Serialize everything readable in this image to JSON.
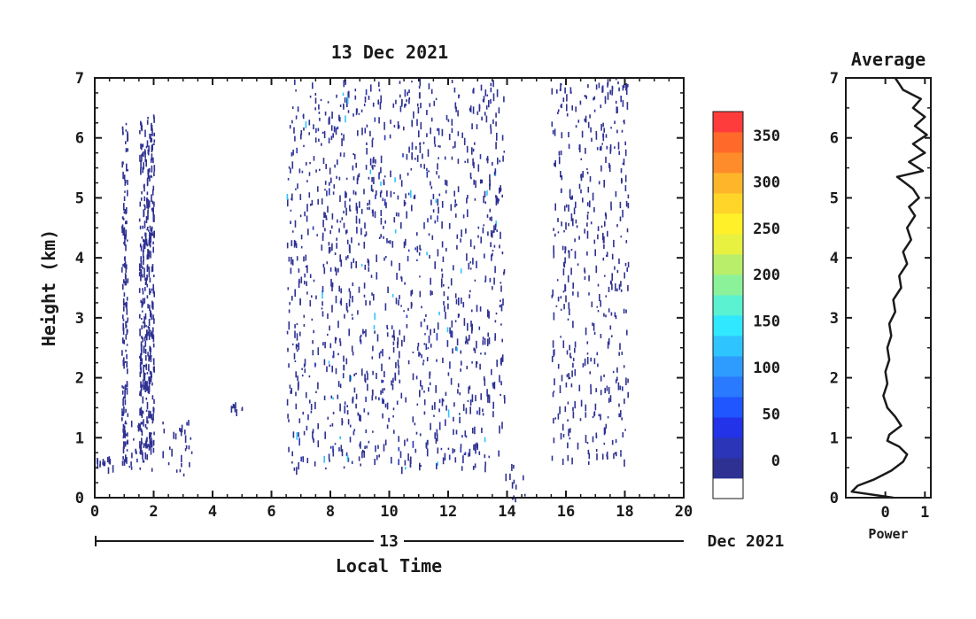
{
  "chart_data": [
    {
      "type": "heatmap",
      "title": "13 Dec 2021",
      "xlabel": "Local Time",
      "ylabel": "Height (km)",
      "xlim": [
        0,
        20
      ],
      "ylim": [
        0,
        7
      ],
      "xticks": [
        0,
        2,
        4,
        6,
        8,
        10,
        12,
        14,
        16,
        18,
        20
      ],
      "yticks": [
        0,
        1,
        2,
        3,
        4,
        5,
        6,
        7
      ],
      "date_axis": {
        "day_label": "13",
        "month_label": "Dec 2021"
      },
      "grid": false,
      "echo_regions": [
        {
          "x": [
            0.0,
            0.6
          ],
          "y": [
            0.5,
            0.7
          ],
          "level": "0-50"
        },
        {
          "x": [
            0.9,
            1.1
          ],
          "y": [
            0.6,
            6.3
          ],
          "level": "0-50"
        },
        {
          "x": [
            1.5,
            2.0
          ],
          "y": [
            0.7,
            6.4
          ],
          "level": "0-50"
        },
        {
          "x": [
            1.1,
            3.3
          ],
          "y": [
            0.4,
            1.3
          ],
          "level": "0-50"
        },
        {
          "x": [
            4.6,
            5.0
          ],
          "y": [
            1.4,
            1.6
          ],
          "level": "0-50"
        },
        {
          "x": [
            6.5,
            13.9
          ],
          "y": [
            0.5,
            7.0
          ],
          "level": "0-100"
        },
        {
          "x": [
            13.8,
            14.6
          ],
          "y": [
            0.0,
            0.6
          ],
          "level": "0-50"
        },
        {
          "x": [
            15.5,
            18.1
          ],
          "y": [
            0.6,
            7.0
          ],
          "level": "0-50"
        }
      ],
      "colorbar": {
        "ticks": [
          0,
          50,
          100,
          150,
          200,
          250,
          300,
          350
        ],
        "colors": [
          "#ffffff",
          "#2e3192",
          "#2a35b8",
          "#2233e8",
          "#1f56ff",
          "#2a7aff",
          "#2e9cff",
          "#2ec4ff",
          "#30e8ff",
          "#5af2d0",
          "#8cf29a",
          "#b8ee6a",
          "#e8f040",
          "#fff02a",
          "#ffd52a",
          "#ffb52a",
          "#ff8c2a",
          "#ff6a2a",
          "#ff3c3c"
        ]
      }
    },
    {
      "type": "line",
      "title": "Average",
      "xlabel": "Power",
      "ylabel": "",
      "xlim": [
        -1,
        1.15
      ],
      "ylim": [
        0,
        7
      ],
      "xticks": [
        0,
        1
      ],
      "yticks": [
        0,
        1,
        2,
        3,
        4,
        5,
        6,
        7
      ],
      "series": [
        {
          "points": [
            [
              0.2,
              0.0
            ],
            [
              -0.85,
              0.1
            ],
            [
              -0.7,
              0.2
            ],
            [
              -0.3,
              0.3
            ],
            [
              0.15,
              0.45
            ],
            [
              0.45,
              0.6
            ],
            [
              0.55,
              0.72
            ],
            [
              0.35,
              0.85
            ],
            [
              0.05,
              0.95
            ],
            [
              0.1,
              1.05
            ],
            [
              0.4,
              1.2
            ],
            [
              0.25,
              1.35
            ],
            [
              0.05,
              1.5
            ],
            [
              -0.05,
              1.7
            ],
            [
              0.05,
              1.9
            ],
            [
              0.0,
              2.1
            ],
            [
              0.1,
              2.3
            ],
            [
              0.05,
              2.5
            ],
            [
              0.15,
              2.7
            ],
            [
              0.1,
              2.9
            ],
            [
              0.25,
              3.1
            ],
            [
              0.2,
              3.3
            ],
            [
              0.4,
              3.5
            ],
            [
              0.35,
              3.7
            ],
            [
              0.55,
              3.9
            ],
            [
              0.45,
              4.1
            ],
            [
              0.65,
              4.3
            ],
            [
              0.55,
              4.5
            ],
            [
              0.75,
              4.7
            ],
            [
              0.6,
              4.85
            ],
            [
              0.85,
              5.0
            ],
            [
              0.7,
              5.15
            ],
            [
              0.3,
              5.35
            ],
            [
              0.95,
              5.45
            ],
            [
              0.6,
              5.6
            ],
            [
              1.0,
              5.75
            ],
            [
              0.7,
              5.9
            ],
            [
              1.05,
              6.05
            ],
            [
              0.75,
              6.2
            ],
            [
              1.0,
              6.35
            ],
            [
              0.7,
              6.5
            ],
            [
              0.9,
              6.65
            ],
            [
              0.45,
              6.8
            ],
            [
              0.25,
              7.0
            ]
          ]
        }
      ]
    }
  ]
}
